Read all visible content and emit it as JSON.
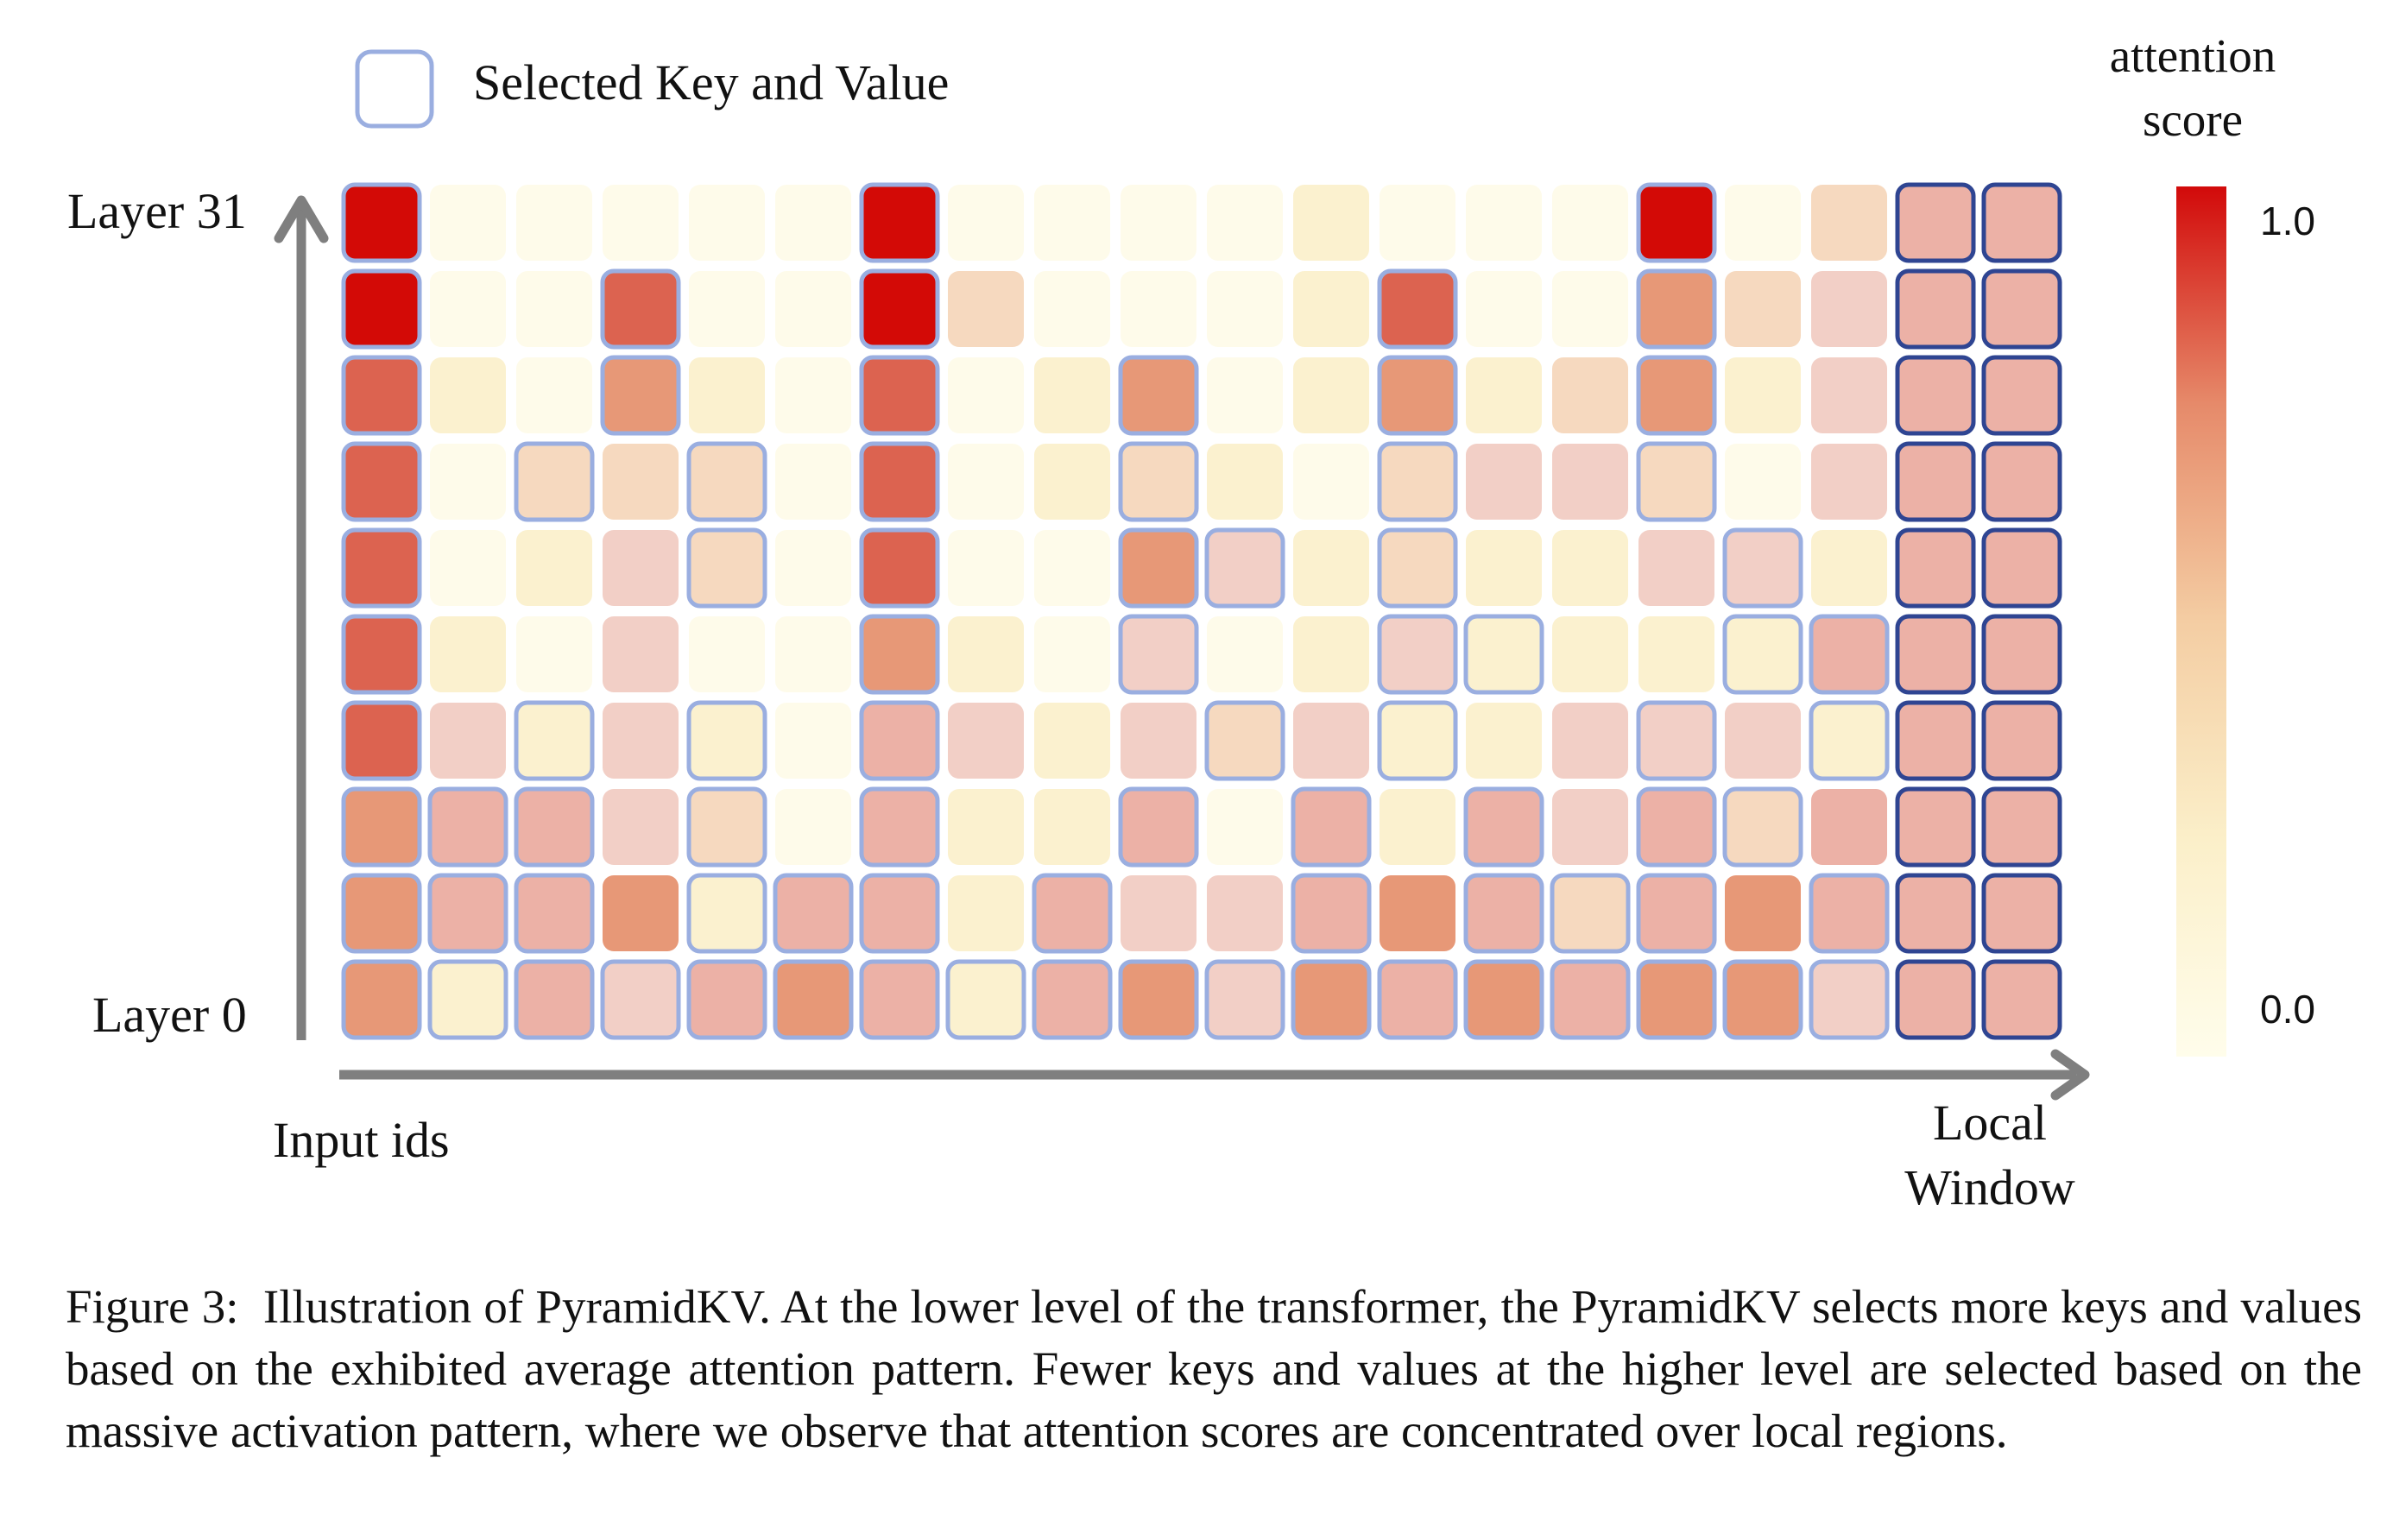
{
  "legend": {
    "selected_label": "Selected Key and Value"
  },
  "colorbar": {
    "title_line1": "attention",
    "title_line2": "score",
    "max_label": "1.0",
    "min_label": "0.0"
  },
  "axes": {
    "y_top": "Layer 31",
    "y_bottom": "Layer 0",
    "x_left": "Input ids",
    "x_right_line1": "Local",
    "x_right_line2": "Window"
  },
  "colors": {
    "scale": [
      "#fefbea",
      "#fbf1cf",
      "#f6d9bf",
      "#f2cfc6",
      "#ecb1a6",
      "#e79877",
      "#dc6350",
      "#d30a06"
    ],
    "selected_border": "#9aaee0",
    "window_border": "#2f4592"
  },
  "chart_data": {
    "type": "heatmap",
    "value_scale": "0 = lightest, 7 = darkest (attention score 0.0 to 1.0)",
    "rows_top_to_bottom": "Layer 31 to Layer 0",
    "columns": "Input ids, last two columns = Local Window",
    "values": [
      [
        7,
        0,
        0,
        0,
        0,
        0,
        7,
        0,
        0,
        0,
        0,
        1,
        0,
        0,
        0,
        7,
        0,
        2,
        4,
        4
      ],
      [
        7,
        0,
        0,
        6,
        0,
        0,
        7,
        2,
        0,
        0,
        0,
        1,
        6,
        0,
        0,
        5,
        2,
        3,
        4,
        4
      ],
      [
        6,
        1,
        0,
        5,
        1,
        0,
        6,
        0,
        1,
        5,
        0,
        1,
        5,
        1,
        2,
        5,
        1,
        3,
        4,
        4
      ],
      [
        6,
        0,
        2,
        2,
        2,
        0,
        6,
        0,
        1,
        2,
        1,
        0,
        2,
        3,
        3,
        2,
        0,
        3,
        4,
        4
      ],
      [
        6,
        0,
        1,
        3,
        2,
        0,
        6,
        0,
        0,
        5,
        3,
        1,
        2,
        1,
        1,
        3,
        3,
        1,
        4,
        4
      ],
      [
        6,
        1,
        0,
        3,
        0,
        0,
        5,
        1,
        0,
        3,
        0,
        1,
        3,
        1,
        1,
        1,
        1,
        4,
        4,
        4
      ],
      [
        6,
        3,
        1,
        3,
        1,
        0,
        4,
        3,
        1,
        3,
        2,
        3,
        1,
        1,
        3,
        3,
        3,
        1,
        4,
        4
      ],
      [
        5,
        4,
        4,
        3,
        2,
        0,
        4,
        1,
        1,
        4,
        0,
        4,
        1,
        4,
        3,
        4,
        2,
        4,
        4,
        4
      ],
      [
        5,
        4,
        4,
        5,
        1,
        4,
        4,
        1,
        4,
        3,
        3,
        4,
        5,
        4,
        2,
        4,
        5,
        4,
        4,
        4
      ],
      [
        5,
        1,
        4,
        3,
        4,
        5,
        4,
        1,
        4,
        5,
        3,
        5,
        4,
        5,
        4,
        5,
        5,
        3,
        4,
        4
      ]
    ],
    "selected": [
      [
        1,
        0,
        0,
        0,
        0,
        0,
        1,
        0,
        0,
        0,
        0,
        0,
        0,
        0,
        0,
        1,
        0,
        0,
        1,
        1
      ],
      [
        1,
        0,
        0,
        1,
        0,
        0,
        1,
        0,
        0,
        0,
        0,
        0,
        1,
        0,
        0,
        1,
        0,
        0,
        1,
        1
      ],
      [
        1,
        0,
        0,
        1,
        0,
        0,
        1,
        0,
        0,
        1,
        0,
        0,
        1,
        0,
        0,
        1,
        0,
        0,
        1,
        1
      ],
      [
        1,
        0,
        1,
        0,
        1,
        0,
        1,
        0,
        0,
        1,
        0,
        0,
        1,
        0,
        0,
        1,
        0,
        0,
        1,
        1
      ],
      [
        1,
        0,
        0,
        0,
        1,
        0,
        1,
        0,
        0,
        1,
        1,
        0,
        1,
        0,
        0,
        0,
        1,
        0,
        1,
        1
      ],
      [
        1,
        0,
        0,
        0,
        0,
        0,
        1,
        0,
        0,
        1,
        0,
        0,
        1,
        1,
        0,
        0,
        1,
        1,
        1,
        1
      ],
      [
        1,
        0,
        1,
        0,
        1,
        0,
        1,
        0,
        0,
        0,
        1,
        0,
        1,
        0,
        0,
        1,
        0,
        1,
        1,
        1
      ],
      [
        1,
        1,
        1,
        0,
        1,
        0,
        1,
        0,
        0,
        1,
        0,
        1,
        0,
        1,
        0,
        1,
        1,
        0,
        1,
        1
      ],
      [
        1,
        1,
        1,
        0,
        1,
        1,
        1,
        0,
        1,
        0,
        0,
        1,
        0,
        1,
        1,
        1,
        0,
        1,
        1,
        1
      ],
      [
        1,
        1,
        1,
        1,
        1,
        1,
        1,
        1,
        1,
        1,
        1,
        1,
        1,
        1,
        1,
        1,
        1,
        1,
        1,
        1
      ]
    ]
  },
  "caption": {
    "label": "Figure 3:  ",
    "text": "Illustration of PyramidKV. At the lower level of the transformer, the PyramidKV selects more keys and values based on the exhibited average attention pattern. Fewer keys and values at the higher level are selected based on the massive activation pattern, where we observe that attention scores are concentrated over local regions."
  }
}
